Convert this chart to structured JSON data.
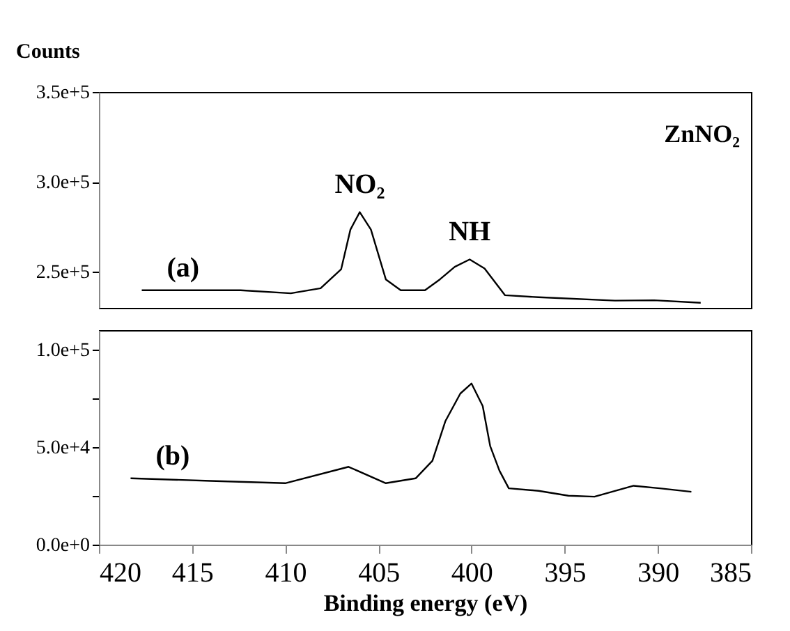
{
  "chart_data": [
    {
      "type": "line",
      "ylabel": "Counts",
      "annotations": [
        "ZnNO₂",
        {
          "text": "NO₂",
          "x": 406.0,
          "y": 283200
        },
        {
          "text": "NH",
          "x": 400.1,
          "y": 256900
        }
      ],
      "xlim": [
        420,
        385
      ],
      "ylim": [
        230000,
        350000
      ],
      "yticks": [
        {
          "value": 250000,
          "label": "2.5e+5"
        },
        {
          "value": 300000,
          "label": "3.0e+5"
        },
        {
          "value": 350000,
          "label": "3.5e+5"
        }
      ],
      "tick_labels": "y",
      "grid": false,
      "marker": "none",
      "line_style": "solid",
      "series": [
        {
          "name": "(a)",
          "color": "#000000",
          "x": [
            417.7,
            412.4,
            409.7,
            408.1,
            407.0,
            406.5,
            406.0,
            405.4,
            404.6,
            403.8,
            402.5,
            401.7,
            400.9,
            400.1,
            399.3,
            398.2,
            396.4,
            392.3,
            390.2,
            387.7
          ],
          "values": [
            239800,
            239800,
            238100,
            240900,
            251400,
            273500,
            283200,
            273500,
            245800,
            239800,
            239800,
            245800,
            252800,
            256900,
            251900,
            237000,
            235900,
            234000,
            234200,
            232800
          ]
        }
      ]
    },
    {
      "type": "line",
      "xlabel": "Binding energy (eV)",
      "xlim": [
        420,
        385
      ],
      "xticks": [
        420,
        415,
        410,
        405,
        400,
        395,
        390,
        385
      ],
      "ylim": [
        0,
        110000
      ],
      "yticks": [
        {
          "value": 0,
          "label": "0.0e+0"
        },
        {
          "value": 25000,
          "label": null
        },
        {
          "value": 50000,
          "label": "5.0e+4"
        },
        {
          "value": 75000,
          "label": null
        },
        {
          "value": 100000,
          "label": "1.0e+5"
        }
      ],
      "grid": false,
      "marker": "none",
      "line_style": "solid",
      "series": [
        {
          "name": "(b)",
          "color": "#000000",
          "x": [
            418.3,
            414.0,
            410.0,
            406.6,
            404.6,
            403.0,
            402.1,
            401.4,
            400.6,
            400.0,
            399.4,
            399.0,
            398.5,
            398.0,
            396.4,
            394.8,
            393.4,
            391.3,
            389.9,
            388.2
          ],
          "values": [
            34000,
            32700,
            31500,
            39900,
            31500,
            34000,
            43000,
            63400,
            77500,
            82600,
            71100,
            50600,
            37900,
            28900,
            27600,
            25100,
            24600,
            30200,
            28900,
            27100
          ]
        }
      ]
    }
  ]
}
